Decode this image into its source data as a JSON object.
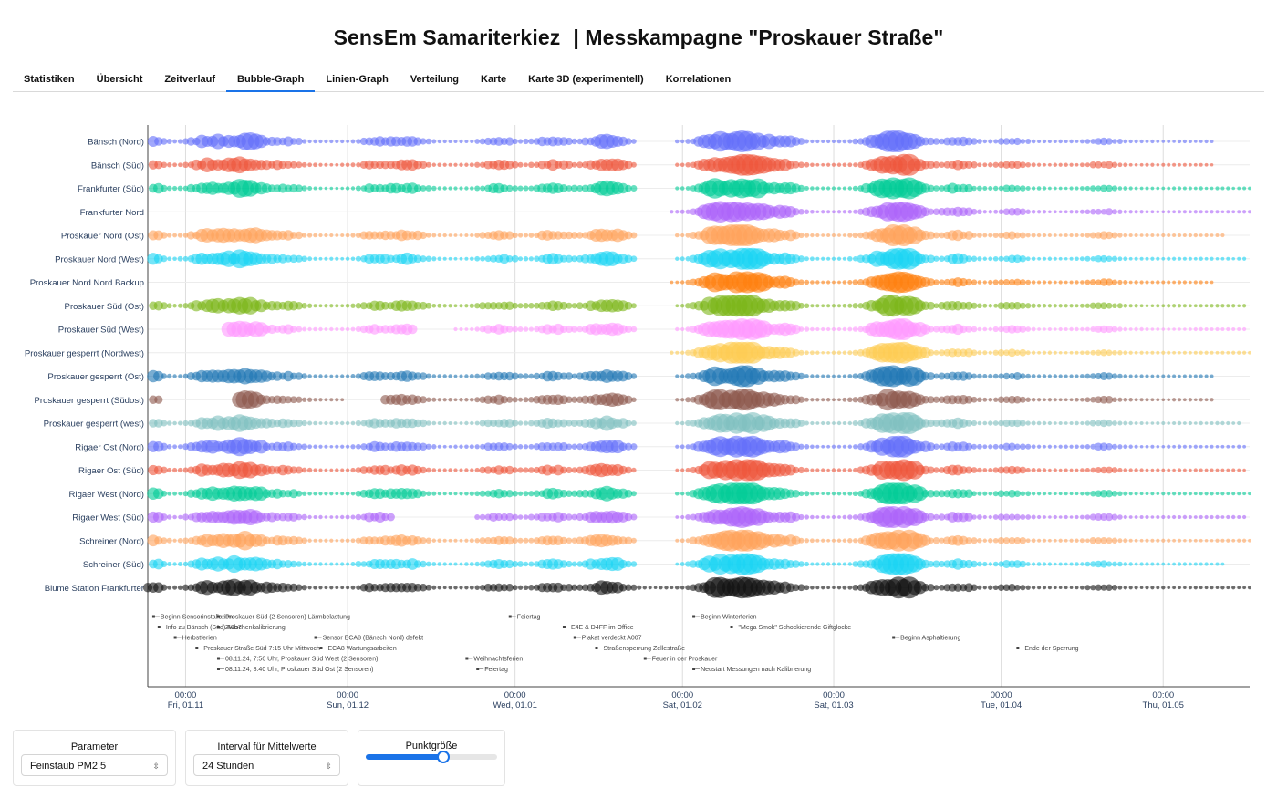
{
  "header": {
    "title_left": "SensEm Samariterkiez",
    "title_right": "| Messkampagne \"Proskauer Straße\""
  },
  "tabs": [
    {
      "label": "Statistiken"
    },
    {
      "label": "Übersicht"
    },
    {
      "label": "Zeitverlauf"
    },
    {
      "label": "Bubble-Graph",
      "active": true
    },
    {
      "label": "Linien-Graph"
    },
    {
      "label": "Verteilung"
    },
    {
      "label": "Karte"
    },
    {
      "label": "Karte 3D (experimentell)"
    },
    {
      "label": "Korrelationen"
    }
  ],
  "chart_data": {
    "type": "scatter",
    "variant": "bubble-timeline",
    "x_range": [
      "2024-10-25",
      "2025-05-17"
    ],
    "x_ticks": [
      {
        "date": "2024-11-01",
        "time": "00:00",
        "label": "Fri, 01.11"
      },
      {
        "date": "2024-12-01",
        "time": "00:00",
        "label": "Sun, 01.12"
      },
      {
        "date": "2025-01-01",
        "time": "00:00",
        "label": "Wed, 01.01"
      },
      {
        "date": "2025-02-01",
        "time": "00:00",
        "label": "Sat, 01.02"
      },
      {
        "date": "2025-03-01",
        "time": "00:00",
        "label": "Sat, 01.03"
      },
      {
        "date": "2025-04-01",
        "time": "00:00",
        "label": "Tue, 01.04"
      },
      {
        "date": "2025-05-01",
        "time": "00:00",
        "label": "Thu, 01.05"
      }
    ],
    "grid": true,
    "series": [
      {
        "name": "Bänsch (Nord)",
        "color": "#636efa",
        "start": "2024-10-26",
        "end": "2025-05-10",
        "gaps": [
          [
            "2025-01-24",
            "2025-01-30"
          ]
        ]
      },
      {
        "name": "Bänsch (Süd)",
        "color": "#ef553b",
        "start": "2024-10-26",
        "end": "2025-05-10",
        "gaps": [
          [
            "2025-01-24",
            "2025-01-30"
          ]
        ]
      },
      {
        "name": "Frankfurter (Süd)",
        "color": "#00cc96",
        "start": "2024-10-26",
        "end": "2025-05-17",
        "gaps": [
          [
            "2025-01-24",
            "2025-01-30"
          ]
        ]
      },
      {
        "name": "Frankfurter Nord",
        "color": "#ab63fa",
        "start": "2025-01-30",
        "end": "2025-05-17",
        "gaps": []
      },
      {
        "name": "Proskauer Nord (Ost)",
        "color": "#ffa15a",
        "start": "2024-10-26",
        "end": "2025-05-12",
        "gaps": [
          [
            "2025-01-24",
            "2025-01-30"
          ]
        ]
      },
      {
        "name": "Proskauer Nord (West)",
        "color": "#19d3f3",
        "start": "2024-10-26",
        "end": "2025-05-16",
        "gaps": [
          [
            "2025-01-24",
            "2025-01-30"
          ]
        ]
      },
      {
        "name": "Proskauer Nord Nord Backup",
        "color": "#ff7f0e",
        "start": "2025-01-30",
        "end": "2025-05-10",
        "gaps": []
      },
      {
        "name": "Proskauer Süd (Ost)",
        "color": "#7cb518",
        "start": "2024-10-26",
        "end": "2025-05-16",
        "gaps": [
          [
            "2025-01-24",
            "2025-01-30"
          ]
        ]
      },
      {
        "name": "Proskauer Süd (West)",
        "color": "#ff97ff",
        "start": "2024-11-08",
        "end": "2025-05-16",
        "gaps": [
          [
            "2024-10-27",
            "2024-11-08"
          ],
          [
            "2024-12-14",
            "2024-12-20"
          ],
          [
            "2025-01-24",
            "2025-01-30"
          ]
        ]
      },
      {
        "name": "Proskauer gesperrt (Nordwest)",
        "color": "#fecb52",
        "start": "2025-01-30",
        "end": "2025-05-17",
        "gaps": []
      },
      {
        "name": "Proskauer gesperrt (Ost)",
        "color": "#1f77b4",
        "start": "2024-10-26",
        "end": "2025-05-10",
        "gaps": [
          [
            "2025-01-24",
            "2025-01-30"
          ]
        ]
      },
      {
        "name": "Proskauer gesperrt (Südost)",
        "color": "#8c564b",
        "start": "2024-10-26",
        "end": "2025-05-10",
        "gaps": [
          [
            "2024-10-28",
            "2024-11-10"
          ],
          [
            "2024-12-01",
            "2024-12-07"
          ],
          [
            "2025-01-24",
            "2025-01-30"
          ]
        ]
      },
      {
        "name": "Proskauer gesperrt (west)",
        "color": "#7fbfbf",
        "start": "2024-10-26",
        "end": "2025-05-15",
        "gaps": [
          [
            "2025-01-24",
            "2025-01-30"
          ]
        ]
      },
      {
        "name": "Rigaer Ost (Nord)",
        "color": "#636efa",
        "start": "2024-10-26",
        "end": "2025-05-16",
        "gaps": [
          [
            "2025-01-24",
            "2025-01-30"
          ]
        ]
      },
      {
        "name": "Rigaer Ost (Süd)",
        "color": "#ef553b",
        "start": "2024-10-26",
        "end": "2025-05-16",
        "gaps": [
          [
            "2025-01-24",
            "2025-01-30"
          ]
        ]
      },
      {
        "name": "Rigaer West (Nord)",
        "color": "#00cc96",
        "start": "2024-10-26",
        "end": "2025-05-17",
        "gaps": [
          [
            "2025-01-24",
            "2025-01-30"
          ]
        ]
      },
      {
        "name": "Rigaer West (Süd)",
        "color": "#ab63fa",
        "start": "2024-10-26",
        "end": "2025-05-16",
        "gaps": [
          [
            "2024-12-10",
            "2024-12-24"
          ],
          [
            "2025-01-24",
            "2025-01-30"
          ]
        ]
      },
      {
        "name": "Schreiner (Nord)",
        "color": "#ffa15a",
        "start": "2024-10-26",
        "end": "2025-05-17",
        "gaps": [
          [
            "2025-01-24",
            "2025-01-30"
          ]
        ]
      },
      {
        "name": "Schreiner (Süd)",
        "color": "#19d3f3",
        "start": "2024-10-26",
        "end": "2025-05-12",
        "gaps": [
          [
            "2025-01-24",
            "2025-01-30"
          ]
        ]
      },
      {
        "name": "Blume Station Frankfurter",
        "color": "#111111",
        "start": "2024-10-25",
        "end": "2025-05-17",
        "gaps": []
      }
    ],
    "annotations": [
      {
        "date": "2024-10-26",
        "text": "Beginn Sensorinstallation",
        "row": 0
      },
      {
        "date": "2024-10-27",
        "text": "Info zu Bänsch (Süd) 48b7",
        "row": 1
      },
      {
        "date": "2024-10-30",
        "text": "Herbstferien",
        "row": 2
      },
      {
        "date": "2024-11-03",
        "text": "Proskauer Straße Süd 7:15 Uhr Mittwoch",
        "row": 3
      },
      {
        "date": "2024-11-07",
        "text": "Proskauer Süd (2 Sensoren) Lärmbelastung",
        "row": 0
      },
      {
        "date": "2024-11-07",
        "text": "Zwischenkalibrierung",
        "row": 1
      },
      {
        "date": "2024-11-07",
        "text": "08.11.24, 7:50 Uhr, Proskauer Süd West (2 Sensoren)",
        "row": 4
      },
      {
        "date": "2024-11-07",
        "text": "08.11.24, 8:40 Uhr, Proskauer Süd Ost (2 Sensoren)",
        "row": 5
      },
      {
        "date": "2024-11-25",
        "text": "Sensor ECA8 (Bänsch Nord) defekt",
        "row": 2
      },
      {
        "date": "2024-11-26",
        "text": "ECA8 Wartungsarbeiten",
        "row": 3
      },
      {
        "date": "2024-12-23",
        "text": "Weihnachtsferien",
        "row": 4
      },
      {
        "date": "2024-12-25",
        "text": "Feiertag",
        "row": 5
      },
      {
        "date": "2024-12-31",
        "text": "Feiertag",
        "row": 0
      },
      {
        "date": "2025-01-10",
        "text": "E4E & D4FF im Office",
        "row": 1
      },
      {
        "date": "2025-01-12",
        "text": "Plakat verdeckt A007",
        "row": 2
      },
      {
        "date": "2025-01-16",
        "text": "Straßensperrung Zellestraße",
        "row": 3
      },
      {
        "date": "2025-01-25",
        "text": "Feuer in der Proskauer",
        "row": 4
      },
      {
        "date": "2025-02-03",
        "text": "Beginn Winterferien",
        "row": 0
      },
      {
        "date": "2025-02-03",
        "text": "Neustart Messungen nach Kalibrierung",
        "row": 5
      },
      {
        "date": "2025-02-10",
        "text": "\"Mega Smok\" Schockierende Giftglocke",
        "row": 1
      },
      {
        "date": "2025-03-12",
        "text": "Beginn Asphaltierung",
        "row": 2
      },
      {
        "date": "2025-04-04",
        "text": "Ende der Sperrung",
        "row": 3
      }
    ]
  },
  "controls": {
    "parameter": {
      "label": "Parameter",
      "value": "Feinstaub PM2.5"
    },
    "interval": {
      "label": "Interval für Mittelwerte",
      "value": "24 Stunden"
    },
    "point_size": {
      "label": "Punktgröße",
      "value": 0.58
    }
  }
}
